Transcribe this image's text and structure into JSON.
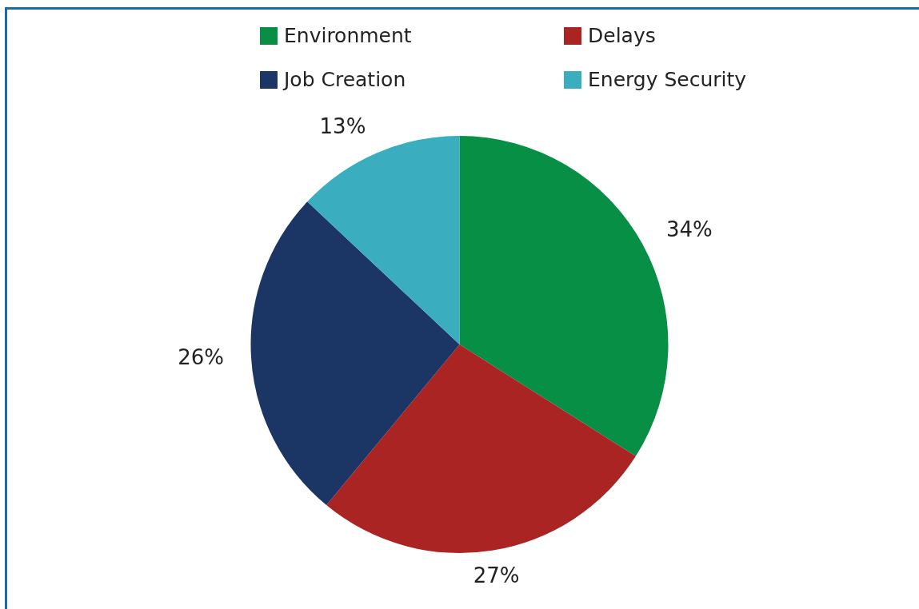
{
  "chart_data": {
    "type": "pie",
    "categories": [
      "Environment",
      "Delays",
      "Job Creation",
      "Energy Security"
    ],
    "values": [
      34,
      27,
      26,
      13
    ],
    "colors": [
      "#078f45",
      "#ab2424",
      "#1b3564",
      "#3aaebf"
    ],
    "value_labels": [
      "34%",
      "27%",
      "26%",
      "13%"
    ],
    "legend": "top"
  }
}
